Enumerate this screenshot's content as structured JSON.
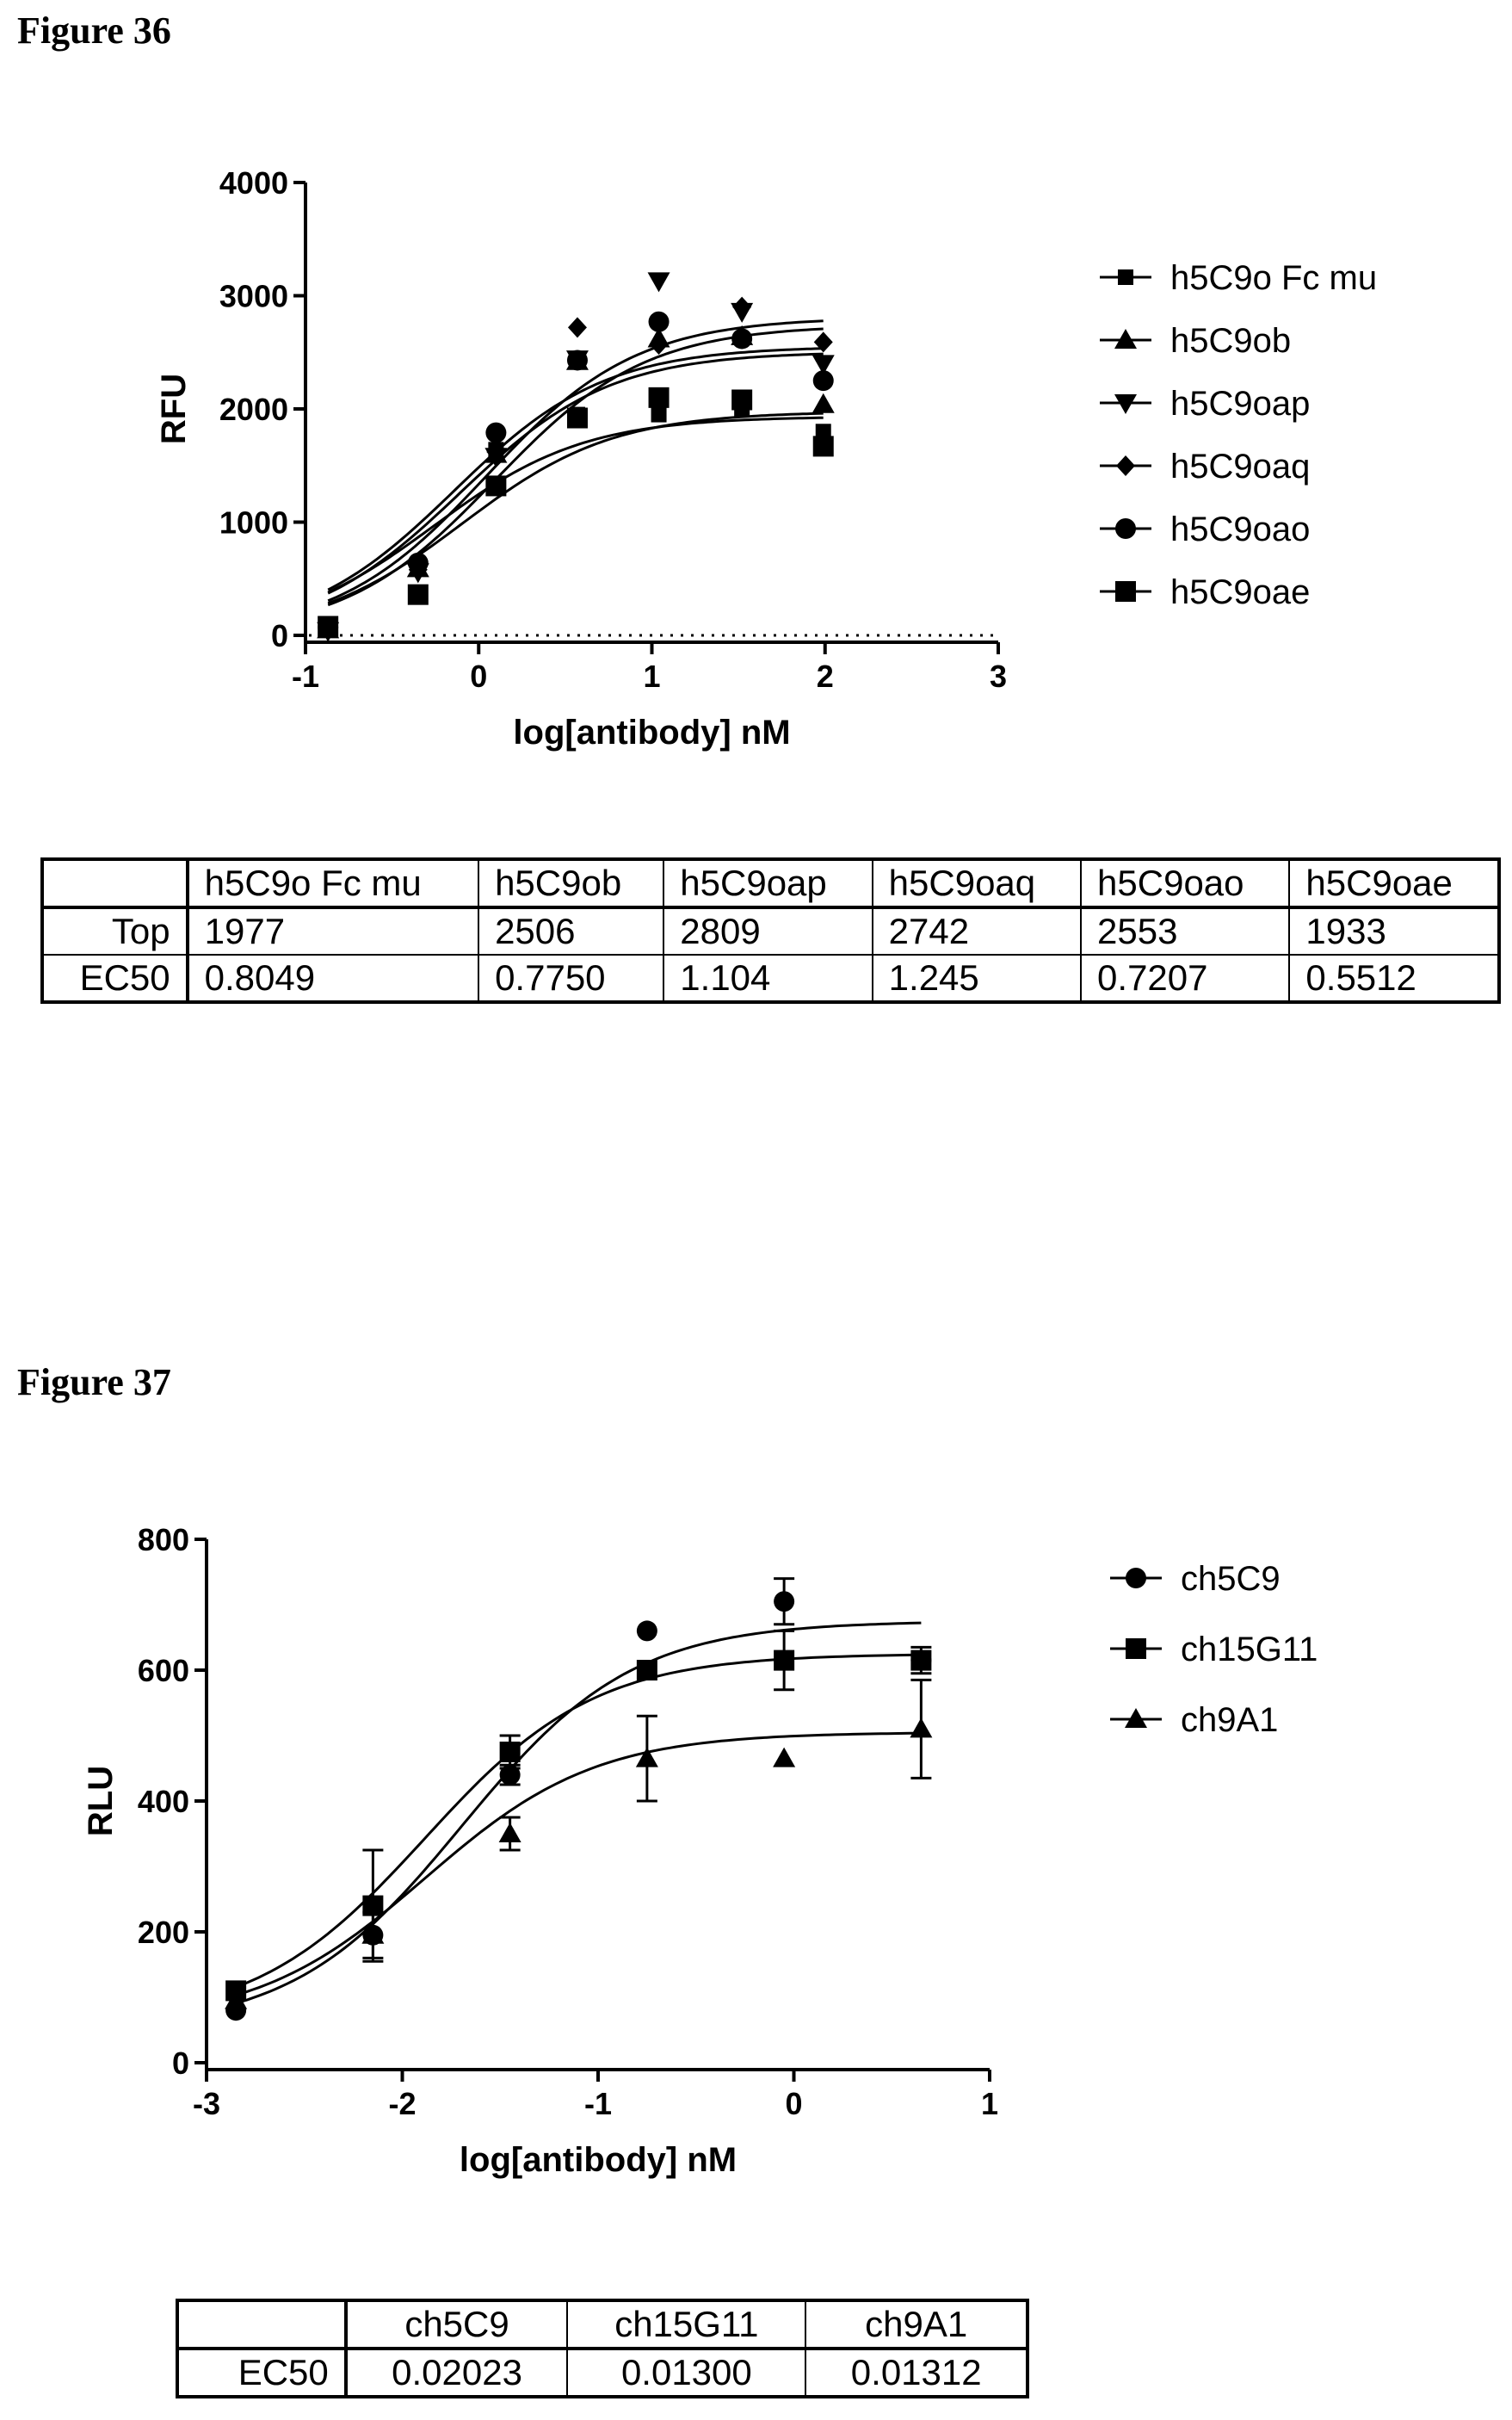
{
  "figures": [
    {
      "title": "Figure 36",
      "table": {
        "columns": [
          "",
          "h5C9o Fc mu",
          "h5C9ob",
          "h5C9oap",
          "h5C9oaq",
          "h5C9oao",
          "h5C9oae"
        ],
        "rows": [
          {
            "label": "Top",
            "values": [
              "1977",
              "2506",
              "2809",
              "2742",
              "2553",
              "1933"
            ]
          },
          {
            "label": "EC50",
            "values": [
              "0.8049",
              "0.7750",
              "1.104",
              "1.245",
              "0.7207",
              "0.5512"
            ]
          }
        ]
      }
    },
    {
      "title": "Figure 37",
      "table": {
        "columns": [
          "",
          "ch5C9",
          "ch15G11",
          "ch9A1"
        ],
        "rows": [
          {
            "label": "EC50",
            "values": [
              "0.02023",
              "0.01300",
              "0.01312"
            ]
          }
        ]
      }
    }
  ],
  "chart_data": [
    {
      "type": "scatter",
      "fit": "sigmoid",
      "xlabel": "log[antibody] nM",
      "ylabel": "RFU",
      "xlim": [
        -1,
        3
      ],
      "ylim": [
        0,
        4000
      ],
      "xticks": [
        "-1",
        "0",
        "1",
        "2",
        "3"
      ],
      "yticks": [
        "0",
        "1000",
        "2000",
        "3000",
        "4000"
      ],
      "baseline": "dotted line at y = 0",
      "legend": "right",
      "series": [
        {
          "name": "h5C9o Fc mu",
          "marker": "square-small",
          "x": [
            -0.87,
            -0.35,
            0.1,
            0.57,
            1.04,
            1.52,
            1.99
          ],
          "y": [
            60,
            620,
            1640,
            1950,
            1950,
            2000,
            1800
          ],
          "fit_top": 1977,
          "fit_logec50": -0.094
        },
        {
          "name": "h5C9ob",
          "marker": "triangle-up",
          "x": [
            -0.87,
            -0.35,
            0.1,
            0.57,
            1.04,
            1.52,
            1.99
          ],
          "y": [
            50,
            590,
            1600,
            2420,
            2620,
            2640,
            2040
          ],
          "fit_top": 2506,
          "fit_logec50": -0.111
        },
        {
          "name": "h5C9oap",
          "marker": "triangle-down",
          "x": [
            -0.87,
            -0.35,
            0.1,
            0.57,
            1.04,
            1.52,
            1.99
          ],
          "y": [
            40,
            560,
            1580,
            2440,
            3130,
            2860,
            2400
          ],
          "fit_top": 2809,
          "fit_logec50": 0.043
        },
        {
          "name": "h5C9oaq",
          "marker": "diamond",
          "x": [
            -0.87,
            -0.35,
            0.1,
            0.57,
            1.04,
            1.52,
            1.99
          ],
          "y": [
            50,
            580,
            1620,
            2720,
            2570,
            2900,
            2590
          ],
          "fit_top": 2742,
          "fit_logec50": 0.095
        },
        {
          "name": "h5C9oao",
          "marker": "circle",
          "x": [
            -0.87,
            -0.35,
            0.1,
            0.57,
            1.04,
            1.52,
            1.99
          ],
          "y": [
            70,
            640,
            1790,
            2430,
            2770,
            2620,
            2250
          ],
          "fit_top": 2553,
          "fit_logec50": -0.142
        },
        {
          "name": "h5C9oae",
          "marker": "square-large",
          "x": [
            -0.87,
            -0.35,
            0.1,
            0.57,
            1.04,
            1.52,
            1.99
          ],
          "y": [
            80,
            360,
            1320,
            1920,
            2100,
            2080,
            1670
          ],
          "fit_top": 1933,
          "fit_logec50": -0.259
        }
      ]
    },
    {
      "type": "scatter",
      "fit": "sigmoid",
      "xlabel": "log[antibody] nM",
      "ylabel": "RLU",
      "xlim": [
        -3,
        1
      ],
      "ylim": [
        0,
        800
      ],
      "xticks": [
        "-3",
        "-2",
        "-1",
        "0",
        "1"
      ],
      "yticks": [
        "0",
        "200",
        "400",
        "600",
        "800"
      ],
      "legend": "right",
      "series": [
        {
          "name": "ch5C9",
          "marker": "circle",
          "x": [
            -2.85,
            -2.15,
            -1.45,
            -0.75,
            -0.05,
            0.65
          ],
          "y": [
            80,
            195,
            440,
            660,
            705,
            615
          ],
          "err": [
            0,
            0,
            15,
            0,
            35,
            0
          ],
          "fit_bottom": 50,
          "fit_top": 675,
          "fit_logec50": -1.694
        },
        {
          "name": "ch15G11",
          "marker": "square",
          "x": [
            -2.85,
            -2.15,
            -1.45,
            -0.75,
            -0.05,
            0.65
          ],
          "y": [
            110,
            240,
            475,
            600,
            615,
            615
          ],
          "err": [
            0,
            85,
            25,
            0,
            45,
            20
          ],
          "fit_bottom": 60,
          "fit_top": 625,
          "fit_logec50": -1.886
        },
        {
          "name": "ch9A1",
          "marker": "triangle-up",
          "x": [
            -2.85,
            -2.15,
            -1.45,
            -0.75,
            -0.05,
            0.65
          ],
          "y": [
            95,
            195,
            350,
            465,
            465,
            510
          ],
          "err": [
            0,
            35,
            25,
            65,
            0,
            75
          ],
          "fit_bottom": 60,
          "fit_top": 505,
          "fit_logec50": -1.882
        }
      ]
    }
  ]
}
